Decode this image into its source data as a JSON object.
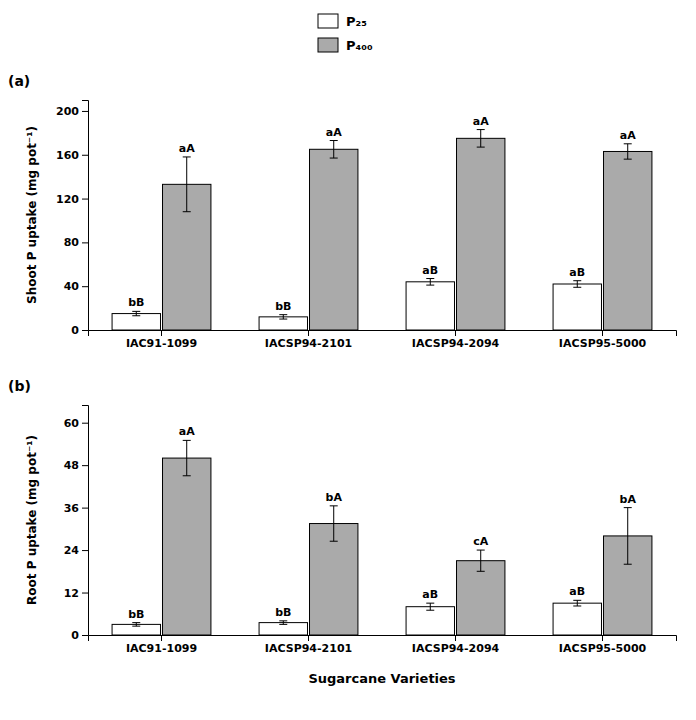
{
  "chart_data": [
    {
      "type": "bar",
      "panel_label": "(a)",
      "ylabel": "Shoot P uptake (mg pot⁻¹)",
      "categories": [
        "IAC91-1099",
        "IACSP94-2101",
        "IACSP94-2094",
        "IACSP95-5000"
      ],
      "series": [
        {
          "name": "P₂₅",
          "color": "#ffffff",
          "values": [
            15,
            12,
            44,
            42
          ],
          "errors": [
            2,
            2,
            3,
            3
          ],
          "letters": [
            "bB",
            "bB",
            "aB",
            "aB"
          ]
        },
        {
          "name": "P₄₀₀",
          "color": "#aaaaaa",
          "values": [
            133,
            165,
            175,
            163
          ],
          "errors": [
            25,
            8,
            8,
            7
          ],
          "letters": [
            "aA",
            "aA",
            "aA",
            "aA"
          ]
        }
      ],
      "ylim": [
        0,
        210
      ],
      "yticks": [
        0,
        40,
        80,
        120,
        160,
        200
      ],
      "legend": "top"
    },
    {
      "type": "bar",
      "panel_label": "(b)",
      "ylabel": "Root P uptake (mg pot⁻¹)",
      "xlabel": "Sugarcane Varieties",
      "categories": [
        "IAC91-1099",
        "IACSP94-2101",
        "IACSP94-2094",
        "IACSP95-5000"
      ],
      "series": [
        {
          "name": "P₂₅",
          "color": "#ffffff",
          "values": [
            3,
            3.5,
            8,
            9
          ],
          "errors": [
            0.5,
            0.5,
            1.0,
            0.8
          ],
          "letters": [
            "bB",
            "bB",
            "aB",
            "aB"
          ]
        },
        {
          "name": "P₄₀₀",
          "color": "#aaaaaa",
          "values": [
            50,
            31.5,
            21,
            28
          ],
          "errors": [
            5,
            5,
            3,
            8
          ],
          "letters": [
            "aA",
            "bA",
            "cA",
            "bA"
          ]
        }
      ],
      "ylim": [
        0,
        65
      ],
      "yticks": [
        0,
        12,
        24,
        36,
        48,
        60
      ]
    }
  ]
}
